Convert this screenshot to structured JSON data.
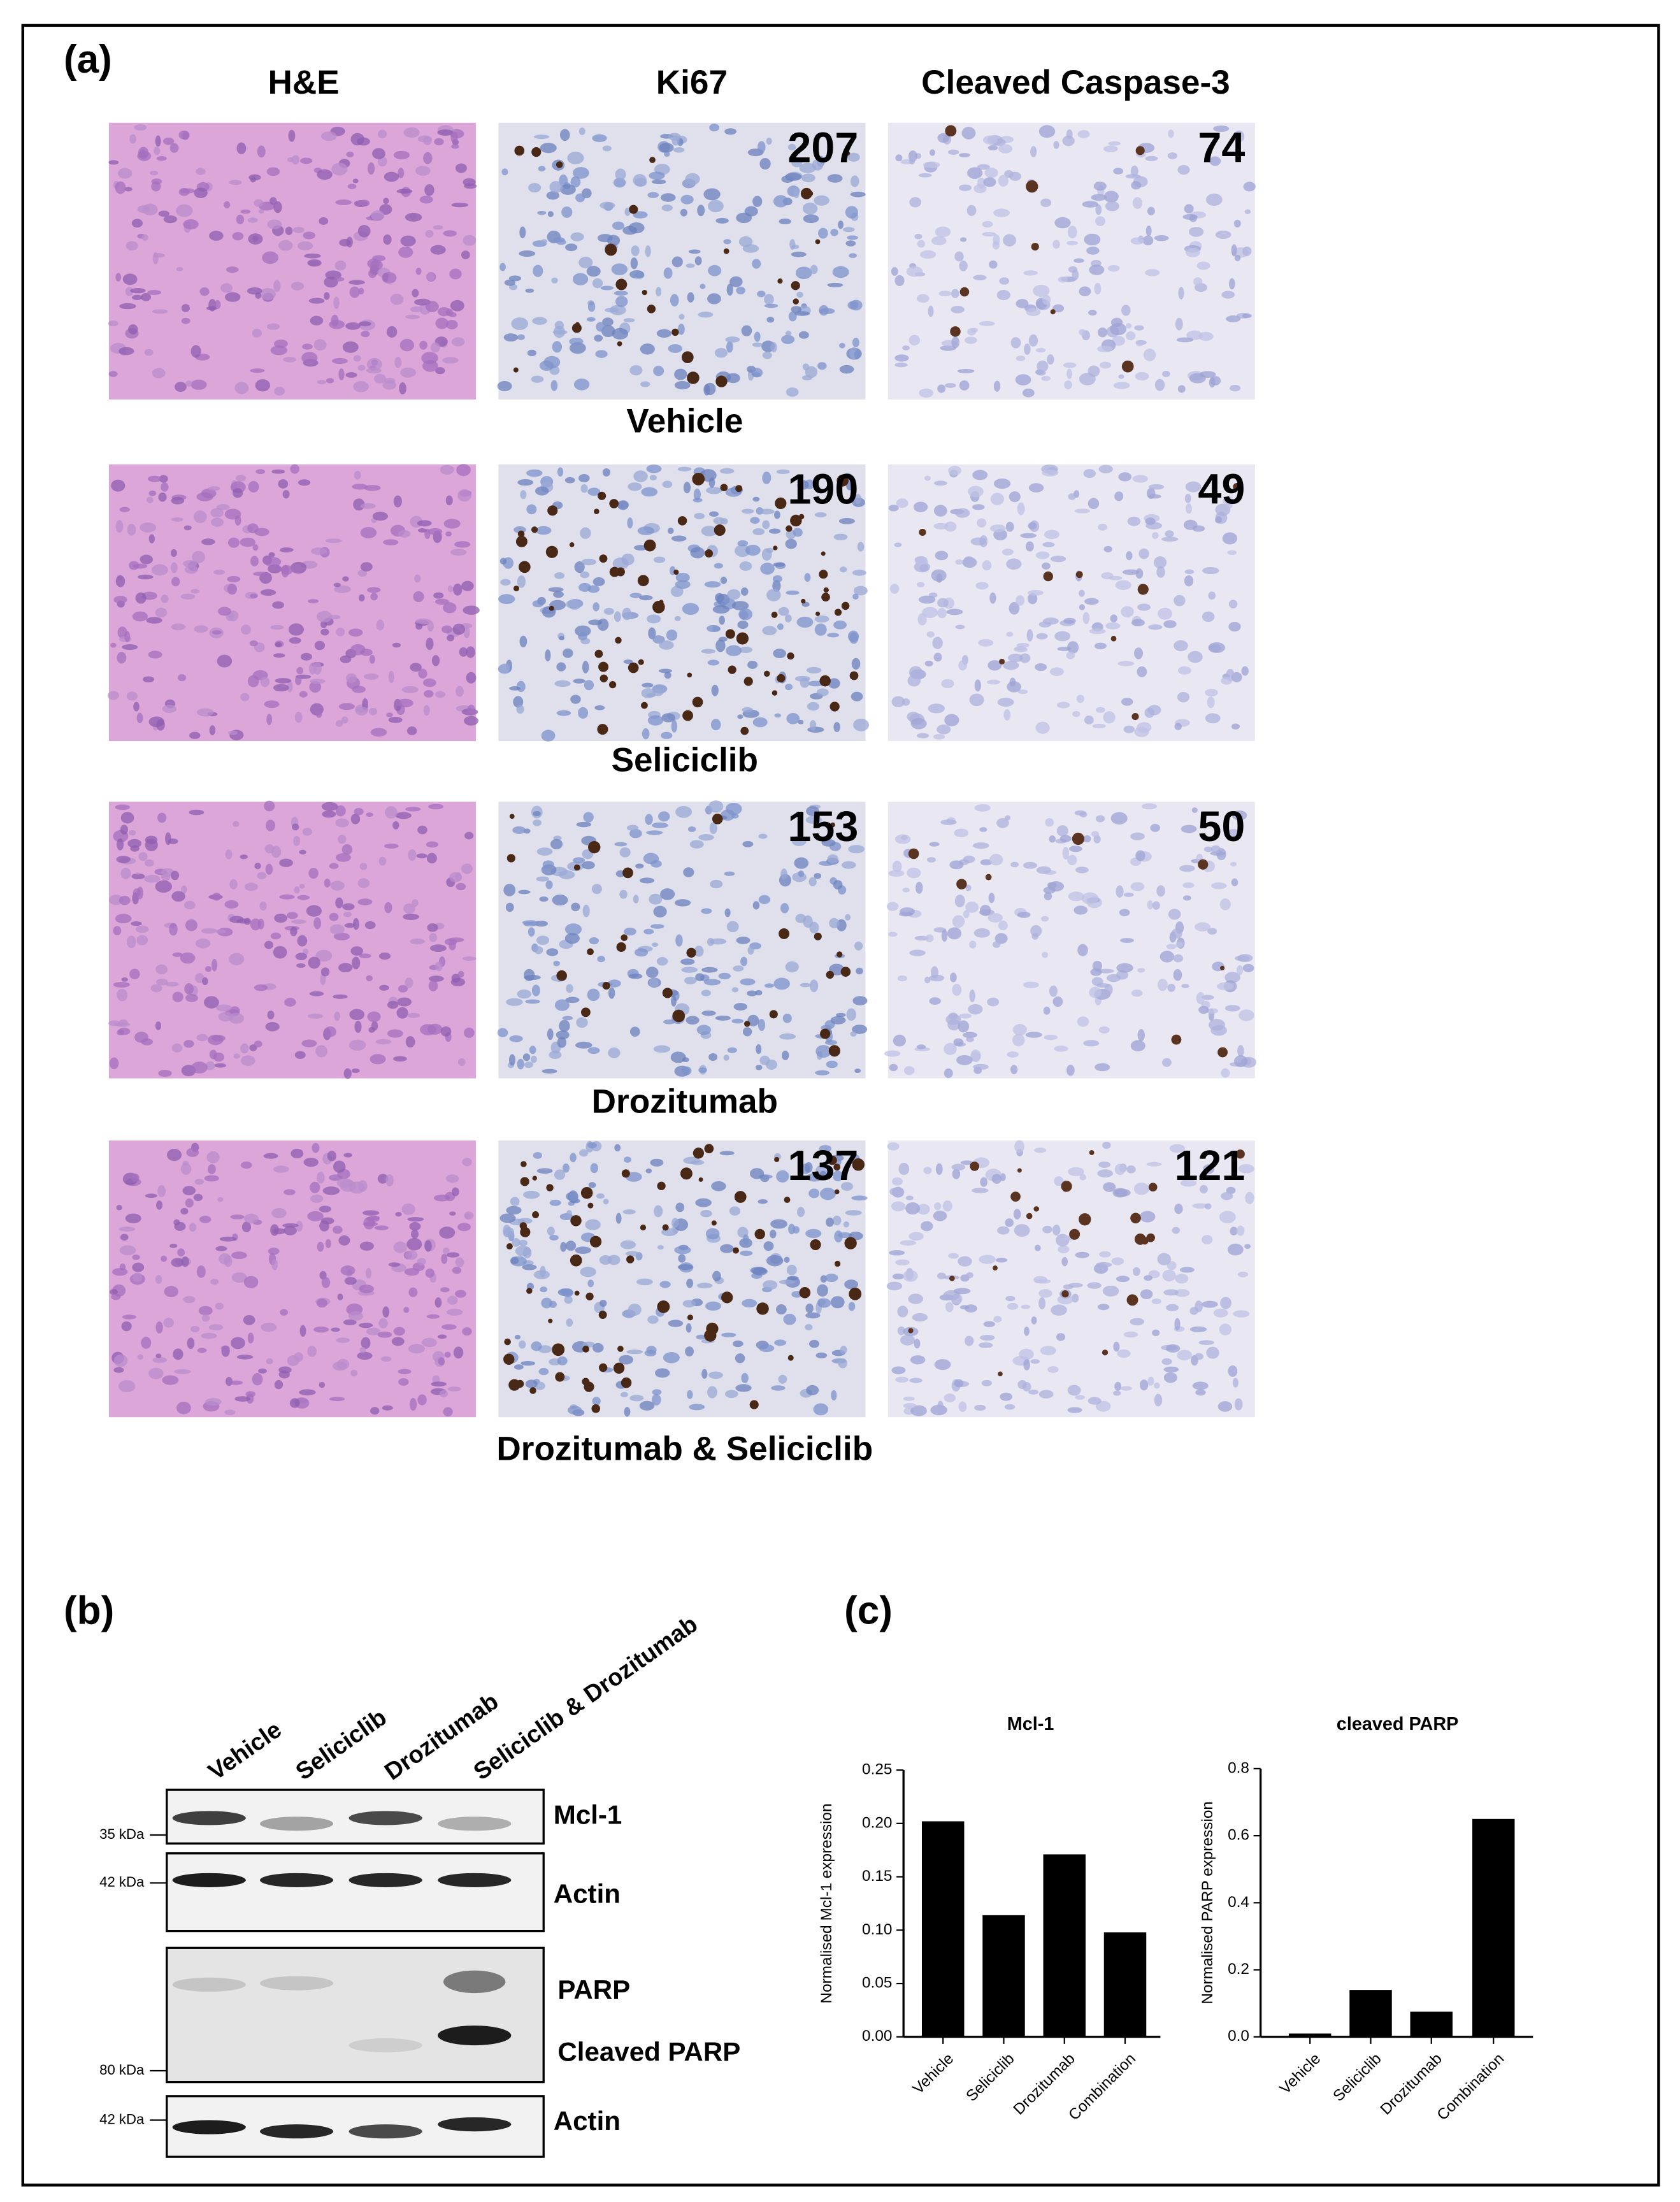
{
  "panel_a": {
    "label": "(a)",
    "columns": [
      "H&E",
      "Ki67",
      "Cleaved Caspase-3"
    ],
    "rows": [
      {
        "treatment": "Vehicle",
        "ki67": 207,
        "caspase": 74
      },
      {
        "treatment": "Seliciclib",
        "ki67": 190,
        "caspase": 49
      },
      {
        "treatment": "Drozitumab",
        "ki67": 153,
        "caspase": 50
      },
      {
        "treatment": "Drozitumab & Seliciclib",
        "ki67": 137,
        "caspase": 121
      }
    ]
  },
  "panel_b": {
    "label": "(b)",
    "lanes": [
      "Vehicle",
      "Seliciclib",
      "Drozitumab",
      "Seliciclib & Drozitumab"
    ],
    "blots": [
      {
        "marker": "35 kDa",
        "bands": [
          "Mcl-1"
        ]
      },
      {
        "marker": "42 kDa",
        "bands": [
          "Actin"
        ]
      },
      {
        "marker": "80 kDa",
        "bands": [
          "PARP",
          "Cleaved PARP"
        ]
      },
      {
        "marker": "42 kDa",
        "bands": [
          "Actin"
        ]
      }
    ]
  },
  "panel_c": {
    "label": "(c)"
  },
  "chart_data": [
    {
      "type": "bar",
      "title": "Mcl-1",
      "y_label": "Normalised Mcl-1 expression",
      "categories": [
        "Vehicle",
        "Seliciclib",
        "Drozitumab",
        "Combination"
      ],
      "values": [
        0.202,
        0.114,
        0.171,
        0.098
      ],
      "color": "#000000",
      "ylim": [
        0,
        0.25
      ],
      "yticks": [
        {
          "value": 0,
          "label": "0.00"
        },
        {
          "value": 0.05,
          "label": "0.05"
        },
        {
          "value": 0.1,
          "label": "0.10"
        },
        {
          "value": 0.15,
          "label": "0.15"
        },
        {
          "value": 0.2,
          "label": "0.20"
        },
        {
          "value": 0.25,
          "label": "0.25"
        }
      ]
    },
    {
      "type": "bar",
      "title": "cleaved PARP",
      "y_label": "Normalised PARP expression",
      "categories": [
        "Vehicle",
        "Seliciclib",
        "Drozitumab",
        "Combination"
      ],
      "values": [
        0.01,
        0.14,
        0.075,
        0.65
      ],
      "color": "#000000",
      "ylim": [
        0,
        0.8
      ],
      "yticks": [
        {
          "value": 0,
          "label": "0.0"
        },
        {
          "value": 0.2,
          "label": "0.2"
        },
        {
          "value": 0.4,
          "label": "0.4"
        },
        {
          "value": 0.6,
          "label": "0.6"
        },
        {
          "value": 0.8,
          "label": "0.8"
        }
      ]
    }
  ]
}
